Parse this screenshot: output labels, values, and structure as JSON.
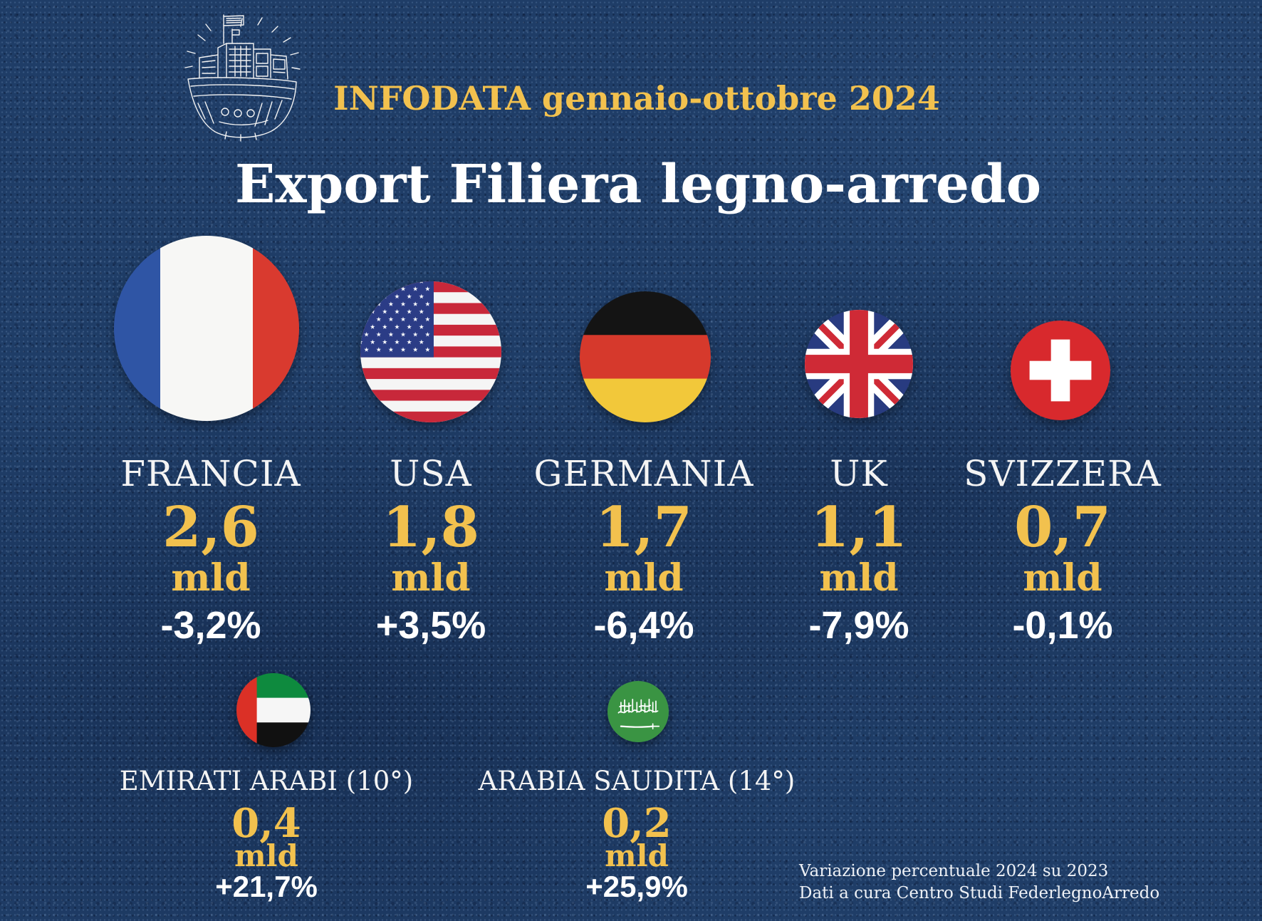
{
  "logo": {
    "icon": "ship-sketch-icon"
  },
  "header": {
    "kicker": "INFODATA gennaio-ottobre 2024",
    "title": "Export Filiera legno-arredo"
  },
  "colors": {
    "background": "#1f3d67",
    "accent": "#f2c14e",
    "text": "#ffffff"
  },
  "top_countries": [
    {
      "name": "FRANCIA",
      "value": "2,6",
      "unit": "mld",
      "change": "-3,2%",
      "flag_icon": "france-flag-icon"
    },
    {
      "name": "USA",
      "value": "1,8",
      "unit": "mld",
      "change": "+3,5%",
      "flag_icon": "usa-flag-icon"
    },
    {
      "name": "GERMANIA",
      "value": "1,7",
      "unit": "mld",
      "change": "-6,4%",
      "flag_icon": "germany-flag-icon"
    },
    {
      "name": "UK",
      "value": "1,1",
      "unit": "mld",
      "change": "-7,9%",
      "flag_icon": "uk-flag-icon"
    },
    {
      "name": "SVIZZERA",
      "value": "0,7",
      "unit": "mld",
      "change": "-0,1%",
      "flag_icon": "switzerland-flag-icon"
    }
  ],
  "other_countries": [
    {
      "name": "EMIRATI ARABI (10°)",
      "value": "0,4",
      "unit": "mld",
      "change": "+21,7%",
      "flag_icon": "uae-flag-icon"
    },
    {
      "name": "ARABIA SAUDITA (14°)",
      "value": "0,2",
      "unit": "mld",
      "change": "+25,9%",
      "flag_icon": "saudi-arabia-flag-icon"
    }
  ],
  "footnote": {
    "line1": "Variazione percentuale 2024 su 2023",
    "line2": "Dati a cura Centro Studi FederlegnoArredo"
  }
}
